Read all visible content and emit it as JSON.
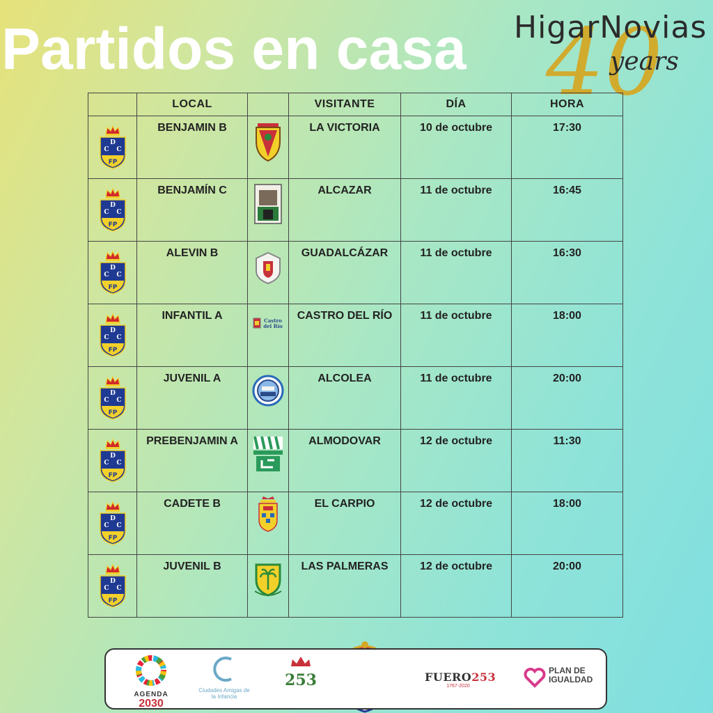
{
  "title": "Partidos en casa",
  "brand": {
    "name": "HigarNovias",
    "forty": "40",
    "years": "years"
  },
  "table": {
    "headers": {
      "local": "LOCAL",
      "visitante": "VISITANTE",
      "dia": "DÍA",
      "hora": "HORA"
    },
    "rows": [
      {
        "local": "BENJAMIN B",
        "visitante": "LA VICTORIA",
        "dia": "10 de octubre",
        "hora": "17:30"
      },
      {
        "local": "BENJAMÍN C",
        "visitante": "ALCAZAR",
        "dia": "11 de octubre",
        "hora": "16:45"
      },
      {
        "local": "ALEVIN B",
        "visitante": "GUADALCÁZAR",
        "dia": "11 de octubre",
        "hora": "16:30"
      },
      {
        "local": "INFANTIL A",
        "visitante": "CASTRO DEL RÍO",
        "dia": "11 de octubre",
        "hora": "18:00"
      },
      {
        "local": "JUVENIL A",
        "visitante": "ALCOLEA",
        "dia": "11 de octubre",
        "hora": "20:00"
      },
      {
        "local": "PREBENJAMIN A",
        "visitante": "ALMODOVAR",
        "dia": "12 de octubre",
        "hora": "11:30"
      },
      {
        "local": "CADETE B",
        "visitante": "EL CARPIO",
        "dia": "12 de octubre",
        "hora": "18:00"
      },
      {
        "local": "JUVENIL B",
        "visitante": "LAS PALMERAS",
        "dia": "12 de octubre",
        "hora": "20:00"
      }
    ]
  },
  "sponsors": {
    "agenda_line1": "AGENDA",
    "agenda_line2": "2030",
    "ciudades": "Ciudades Amigas de la Infancia",
    "aniversario": "253",
    "fuero_text": "FUERO",
    "fuero_number": "253",
    "fuero_years": "1767-2020",
    "plan": "PLAN DE IGUALDAD"
  },
  "colors": {
    "title": "#ffffff",
    "home_crest_blue": "#1f3a93",
    "home_crest_yellow": "#f2d02a",
    "gold": "#d4a826"
  }
}
